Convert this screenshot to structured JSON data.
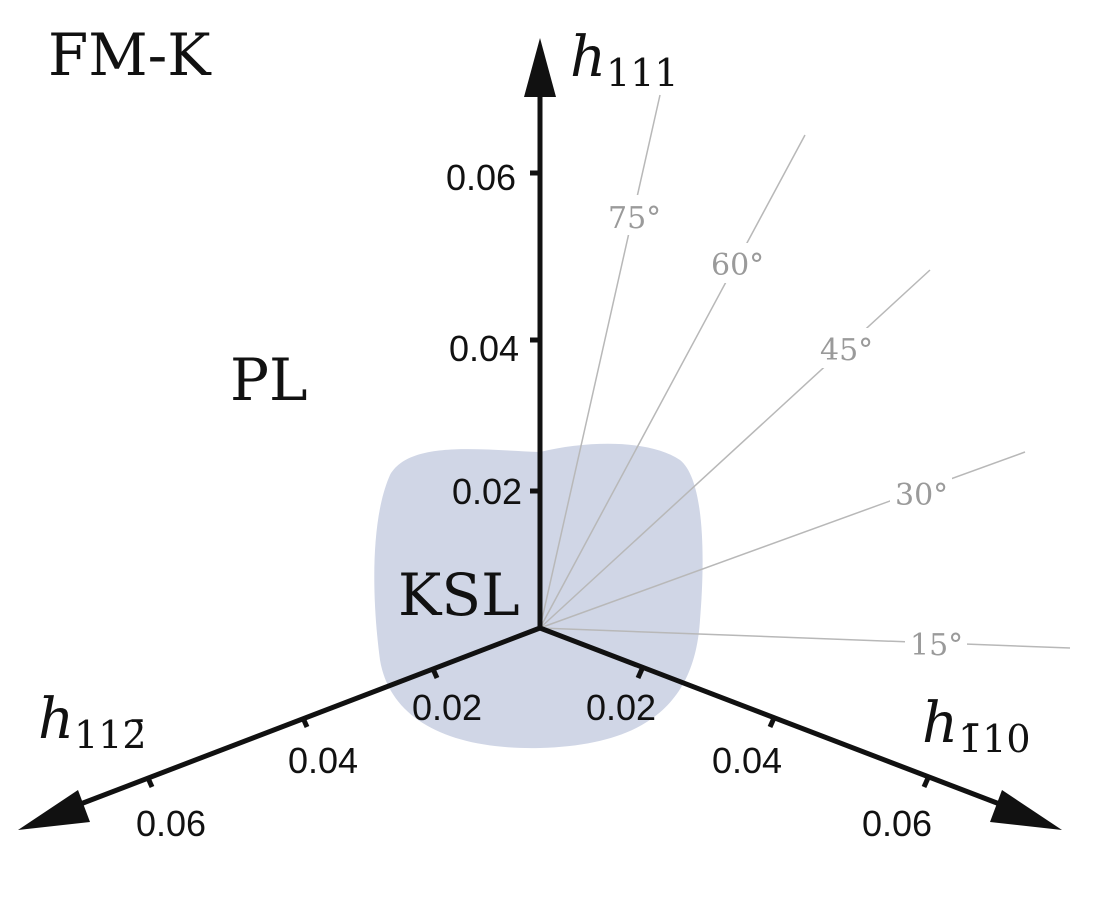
{
  "regions": {
    "fm_k": "FM-K",
    "pl": "PL",
    "ksl": "KSL",
    "ksl_color": "#d0d6e6"
  },
  "axes": {
    "h111": {
      "symbol": "h",
      "subscript": "111",
      "ticks": [
        "0.02",
        "0.04",
        "0.06"
      ]
    },
    "h11bar2": {
      "symbol": "h",
      "subscript": "112̄",
      "ticks": [
        "0.02",
        "0.04",
        "0.06"
      ]
    },
    "hbar110": {
      "symbol": "h",
      "subscript": "1̄10",
      "ticks": [
        "0.02",
        "0.04",
        "0.06"
      ]
    }
  },
  "angles": [
    {
      "label": "75°",
      "degrees": 75
    },
    {
      "label": "60°",
      "degrees": 60
    },
    {
      "label": "45°",
      "degrees": 45
    },
    {
      "label": "30°",
      "degrees": 30
    },
    {
      "label": "15°",
      "degrees": 15
    }
  ],
  "colors": {
    "axis": "#111111",
    "ray": "#b8b8b8",
    "angle_label": "#9a9a9a"
  }
}
